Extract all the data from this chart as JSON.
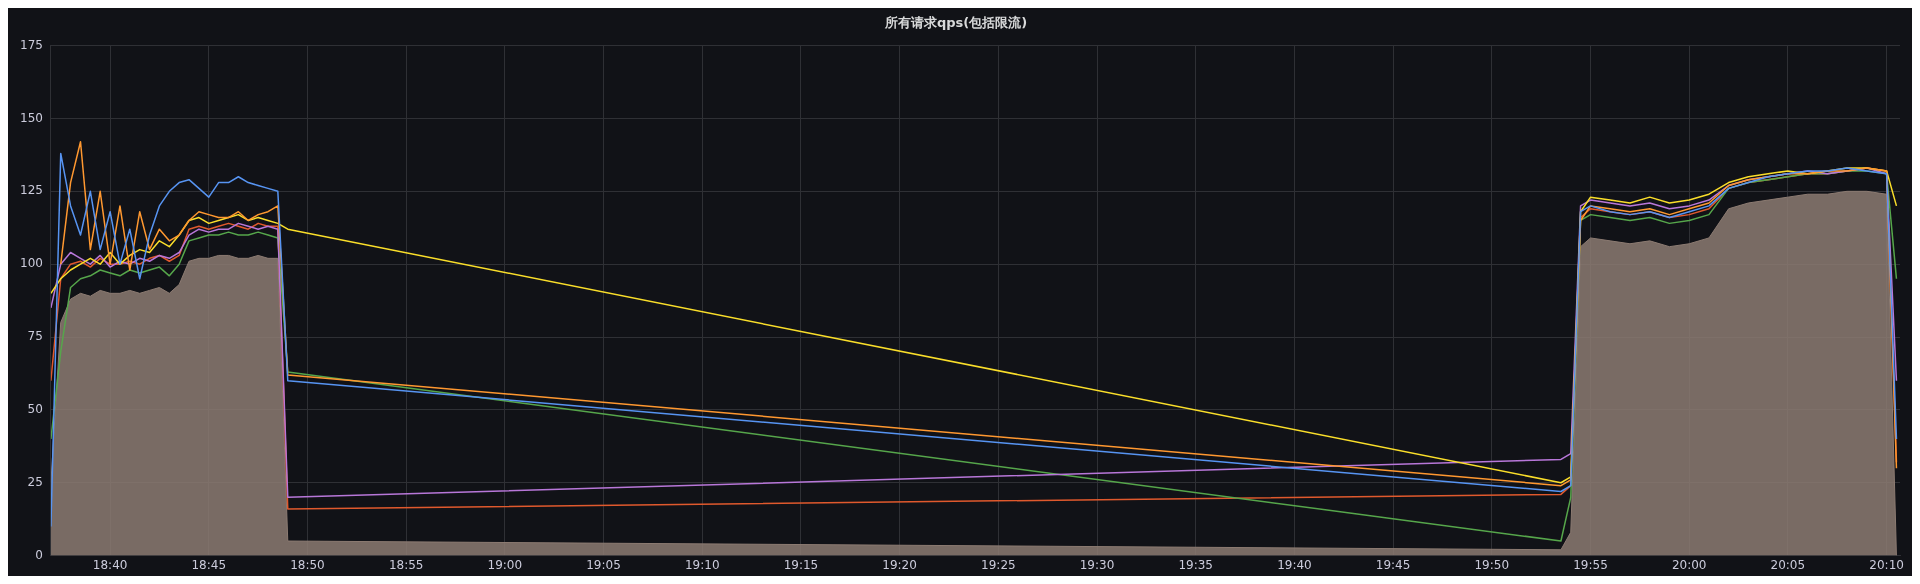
{
  "chart_data": {
    "type": "line",
    "title": "所有请求qps(包括限流)",
    "x": [
      18.6167,
      18.625,
      18.6333,
      18.6417,
      18.65,
      18.6583,
      18.6667,
      18.675,
      18.6833,
      18.6917,
      18.7,
      18.7083,
      18.7167,
      18.725,
      18.7333,
      18.7417,
      18.75,
      18.7583,
      18.7667,
      18.775,
      18.7833,
      18.7917,
      18.8,
      18.8083,
      18.8167,
      19.8917,
      19.9,
      19.9083,
      19.9167,
      19.9333,
      19.95,
      19.9667,
      19.9833,
      20,
      20.0167,
      20.0333,
      20.05,
      20.0667,
      20.0833,
      20.1,
      20.1167,
      20.1333,
      20.15,
      20.1667,
      20.175
    ],
    "series": [
      {
        "type": "area",
        "color": "#8c7b72",
        "values": [
          25,
          80,
          88,
          90,
          89,
          91,
          90,
          90,
          91,
          90,
          91,
          92,
          90,
          93,
          101,
          102,
          102,
          103,
          103,
          102,
          102,
          103,
          102,
          102,
          5,
          2,
          8,
          106,
          109,
          108,
          107,
          108,
          106,
          107,
          109,
          119,
          121,
          122,
          123,
          124,
          124,
          125,
          125,
          124,
          0
        ]
      },
      {
        "color": "#5794f2",
        "values": [
          10,
          138,
          120,
          110,
          125,
          105,
          118,
          100,
          112,
          95,
          110,
          120,
          125,
          128,
          129,
          126,
          123,
          128,
          128,
          130,
          128,
          127,
          126,
          125,
          60,
          22,
          24,
          118,
          120,
          118,
          117,
          118,
          116,
          118,
          120,
          126,
          128,
          130,
          131,
          132,
          132,
          133,
          132,
          131,
          40
        ]
      },
      {
        "color": "#ff9830",
        "values": [
          null,
          100,
          128,
          142,
          105,
          125,
          100,
          120,
          98,
          118,
          105,
          112,
          108,
          110,
          115,
          118,
          117,
          116,
          116,
          118,
          115,
          117,
          118,
          120,
          62,
          24,
          26,
          115,
          120,
          119,
          118,
          119,
          117,
          119,
          121,
          127,
          129,
          130,
          131,
          131,
          132,
          132,
          133,
          132,
          30
        ]
      },
      {
        "color": "#fade2a",
        "values": [
          90,
          95,
          98,
          100,
          102,
          100,
          104,
          100,
          103,
          105,
          104,
          108,
          106,
          110,
          115,
          116,
          114,
          115,
          116,
          117,
          115,
          116,
          115,
          114,
          112,
          25,
          27,
          118,
          123,
          122,
          121,
          123,
          121,
          122,
          124,
          128,
          130,
          131,
          132,
          131,
          132,
          133,
          133,
          132,
          120
        ]
      },
      {
        "color": "#b877d9",
        "values": [
          85,
          100,
          104,
          102,
          100,
          103,
          99,
          101,
          100,
          102,
          101,
          103,
          102,
          104,
          110,
          112,
          111,
          112,
          112,
          114,
          113,
          112,
          113,
          112,
          20,
          33,
          35,
          120,
          122,
          121,
          120,
          121,
          119,
          120,
          122,
          127,
          129,
          130,
          131,
          132,
          131,
          132,
          133,
          131,
          60
        ]
      },
      {
        "color": "#56a64b",
        "values": [
          40,
          70,
          92,
          95,
          96,
          98,
          97,
          96,
          98,
          97,
          98,
          99,
          96,
          100,
          108,
          109,
          110,
          110,
          111,
          110,
          110,
          111,
          110,
          109,
          63,
          5,
          20,
          115,
          117,
          116,
          115,
          116,
          114,
          115,
          117,
          126,
          128,
          129,
          130,
          131,
          131,
          132,
          132,
          131,
          95
        ]
      },
      {
        "color": "#e0592d",
        "values": [
          60,
          95,
          100,
          101,
          99,
          102,
          100,
          100,
          101,
          100,
          102,
          103,
          101,
          103,
          112,
          113,
          112,
          113,
          114,
          113,
          112,
          114,
          113,
          113,
          16,
          21,
          24,
          116,
          119,
          118,
          117,
          118,
          116,
          117,
          119,
          126,
          128,
          129,
          130,
          131,
          131,
          132,
          133,
          132,
          32
        ]
      }
    ],
    "xlim": [
      18.6167,
      20.178
    ],
    "xticks": [
      {
        "value": 18.6667,
        "label": "18:40"
      },
      {
        "value": 18.75,
        "label": "18:45"
      },
      {
        "value": 18.8333,
        "label": "18:50"
      },
      {
        "value": 18.9167,
        "label": "18:55"
      },
      {
        "value": 19,
        "label": "19:00"
      },
      {
        "value": 19.0833,
        "label": "19:05"
      },
      {
        "value": 19.1667,
        "label": "19:10"
      },
      {
        "value": 19.25,
        "label": "19:15"
      },
      {
        "value": 19.3333,
        "label": "19:20"
      },
      {
        "value": 19.4167,
        "label": "19:25"
      },
      {
        "value": 19.5,
        "label": "19:30"
      },
      {
        "value": 19.5833,
        "label": "19:35"
      },
      {
        "value": 19.6667,
        "label": "19:40"
      },
      {
        "value": 19.75,
        "label": "19:45"
      },
      {
        "value": 19.8333,
        "label": "19:50"
      },
      {
        "value": 19.9167,
        "label": "19:55"
      },
      {
        "value": 20,
        "label": "20:00"
      },
      {
        "value": 20.0833,
        "label": "20:05"
      },
      {
        "value": 20.1667,
        "label": "20:10"
      }
    ],
    "ylim": [
      0,
      175
    ],
    "yticks": [
      0,
      25,
      50,
      75,
      100,
      125,
      150,
      175
    ],
    "grid": true,
    "legend": false,
    "marker": "none",
    "line_style": "solid"
  }
}
